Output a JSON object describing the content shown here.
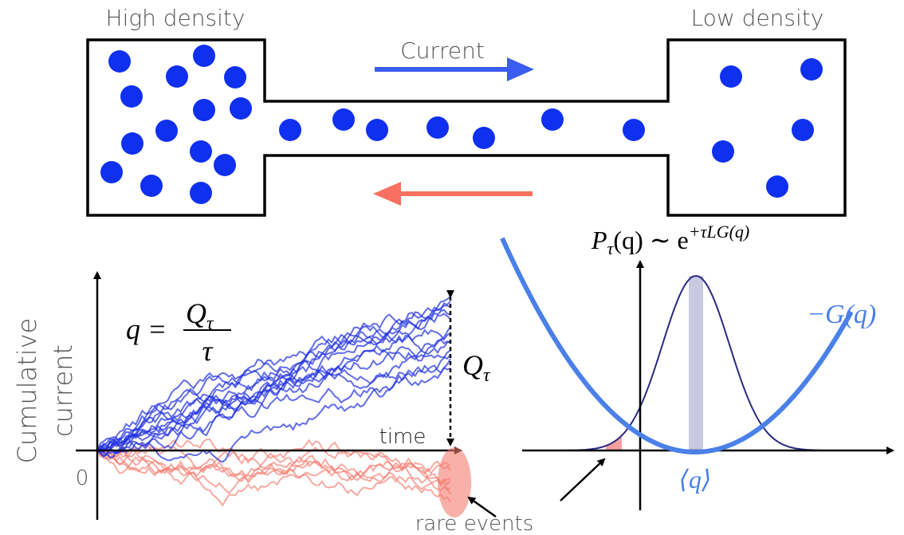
{
  "top": {
    "left_label": "High density",
    "right_label": "Low density",
    "current_label": "Current"
  },
  "left_plot": {
    "y_label": [
      "Cumulative",
      "current"
    ],
    "x_label": "time",
    "origin_label": "0",
    "formula": {
      "lhs": "q =",
      "numerator_symbol": "Q",
      "numerator_subscript": "τ",
      "denominator": "τ"
    },
    "delta_label": {
      "symbol": "Q",
      "subscript": "τ"
    },
    "rare_events": "rare events"
  },
  "right_plot": {
    "distribution": {
      "base": "P",
      "subscript": "τ",
      "rest": "(q) ∼ e",
      "superscript": "+τLG(q)"
    },
    "rate_function": "−G(q)",
    "mean": "⟨q⟩"
  }
}
